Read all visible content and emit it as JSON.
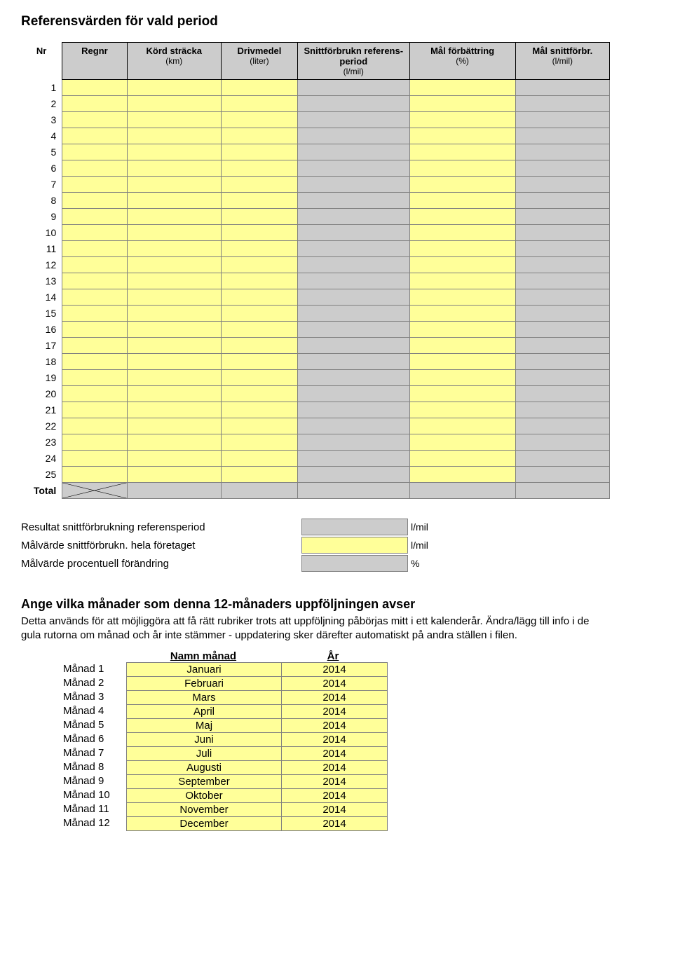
{
  "page_title": "Referensvärden för vald period",
  "table1": {
    "headers": [
      {
        "main": "Nr",
        "sub": ""
      },
      {
        "main": "Regnr",
        "sub": ""
      },
      {
        "main": "Körd sträcka",
        "sub": "(km)"
      },
      {
        "main": "Drivmedel",
        "sub": "(liter)"
      },
      {
        "main": "Snittförbrukn referens-period",
        "sub": "(l/mil)"
      },
      {
        "main": "Mål förbättring",
        "sub": "(%)"
      },
      {
        "main": "Mål snittförbr.",
        "sub": "(l/mil)"
      }
    ],
    "row_numbers": [
      "1",
      "2",
      "3",
      "4",
      "5",
      "6",
      "7",
      "8",
      "9",
      "10",
      "11",
      "12",
      "13",
      "14",
      "15",
      "16",
      "17",
      "18",
      "19",
      "20",
      "21",
      "22",
      "23",
      "24",
      "25"
    ],
    "total_label": "Total"
  },
  "results": {
    "r1": {
      "label": "Resultat snittförbrukning referensperiod",
      "unit": "l/mil",
      "style": "gray"
    },
    "r2": {
      "label": "Målvärde snittförbrukn. hela företaget",
      "unit": "l/mil",
      "style": "yellow"
    },
    "r3": {
      "label": "Målvärde procentuell förändring",
      "unit": "%",
      "style": "gray"
    }
  },
  "section2_title": "Ange vilka månader som denna 12-månaders uppföljningen avser",
  "section2_desc": "Detta används för att möjliggöra att få rätt rubriker trots att uppföljning påbörjas mitt i ett kalenderår. Ändra/lägg till info i de gula rutorna om månad och år inte stämmer - uppdatering sker därefter automatiskt på andra ställen i filen.",
  "month_head": {
    "label": "",
    "name": "Namn månad",
    "year": "År"
  },
  "months": [
    {
      "label": "Månad 1",
      "name": "Januari",
      "year": "2014"
    },
    {
      "label": "Månad 2",
      "name": "Februari",
      "year": "2014"
    },
    {
      "label": "Månad 3",
      "name": "Mars",
      "year": "2014"
    },
    {
      "label": "Månad 4",
      "name": "April",
      "year": "2014"
    },
    {
      "label": "Månad 5",
      "name": "Maj",
      "year": "2014"
    },
    {
      "label": "Månad 6",
      "name": "Juni",
      "year": "2014"
    },
    {
      "label": "Månad 7",
      "name": "Juli",
      "year": "2014"
    },
    {
      "label": "Månad 8",
      "name": "Augusti",
      "year": "2014"
    },
    {
      "label": "Månad 9",
      "name": "September",
      "year": "2014"
    },
    {
      "label": "Månad 10",
      "name": "Oktober",
      "year": "2014"
    },
    {
      "label": "Månad 11",
      "name": "November",
      "year": "2014"
    },
    {
      "label": "Månad 12",
      "name": "December",
      "year": "2014"
    }
  ],
  "colors": {
    "input_bg": "#ffff99",
    "header_bg": "#cccccc",
    "border": "#808080"
  }
}
